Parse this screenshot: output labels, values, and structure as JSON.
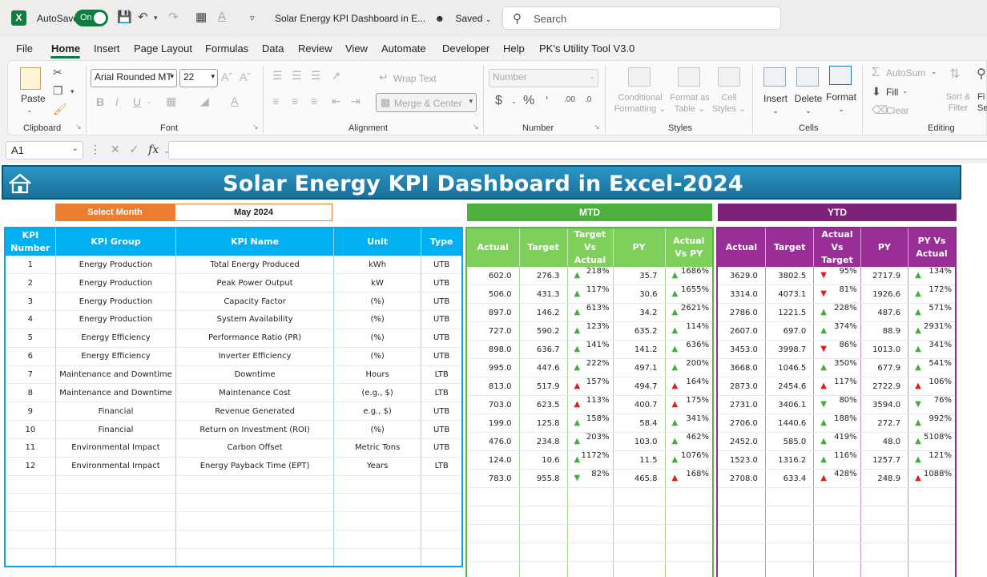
{
  "titlebar": {
    "app_icon": "X",
    "autosave_label": "AutoSave",
    "autosave_state": "On",
    "doc_title": "Solar Energy KPI Dashboard in E...",
    "saved_label": "Saved",
    "search_placeholder": "Search"
  },
  "menu": [
    "File",
    "Home",
    "Insert",
    "Page Layout",
    "Formulas",
    "Data",
    "Review",
    "View",
    "Automate",
    "Developer",
    "Help",
    "PK's Utility Tool V3.0"
  ],
  "ribbon": {
    "clipboard": {
      "label": "Clipboard",
      "paste": "Paste"
    },
    "font": {
      "label": "Font",
      "font_name": "Arial Rounded MT",
      "font_size": "22"
    },
    "alignment": {
      "label": "Alignment",
      "wrap_text": "Wrap Text",
      "merge_center": "Merge & Center"
    },
    "number": {
      "label": "Number",
      "format": "Number"
    },
    "styles": {
      "label": "Styles",
      "conditional_1": "Conditional",
      "conditional_2": "Formatting",
      "format_as_table_1": "Format as",
      "format_as_table_2": "Table",
      "cell_styles_1": "Cell",
      "cell_styles_2": "Styles"
    },
    "cells": {
      "label": "Cells",
      "insert": "Insert",
      "delete": "Delete",
      "format": "Format"
    },
    "editing": {
      "label": "Editing",
      "autosum": "AutoSum",
      "fill": "Fill",
      "clear": "Clear",
      "sort_filter_1": "Sort &",
      "sort_filter_2": "Filter",
      "find_1": "Fi",
      "find_2": "Se"
    }
  },
  "formula_bar": {
    "name_box": "A1",
    "fx": "fx"
  },
  "dashboard": {
    "title": "Solar Energy KPI Dashboard in Excel-2024",
    "select_month_label": "Select Month",
    "selected_month": "May 2024",
    "mtd_label": "MTD",
    "ytd_label": "YTD",
    "kpi_headers": [
      "KPI Number",
      "KPI Group",
      "KPI Name",
      "Unit",
      "Type"
    ],
    "mtd_headers": [
      "Actual",
      "Target",
      "Target Vs Actual",
      "PY",
      "Actual Vs PY"
    ],
    "ytd_headers": [
      "Actual",
      "Target",
      "Actual Vs Target",
      "PY",
      "PY Vs Actual"
    ],
    "rows": [
      {
        "num": "1",
        "group": "Energy Production",
        "name": "Total Energy Produced",
        "unit": "kWh",
        "type": "UTB",
        "mtd": {
          "actual": "602.0",
          "target": "276.3",
          "tva": "218%",
          "tva_dir": "up",
          "py": "35.7",
          "avp": "1686%",
          "avp_dir": "up"
        },
        "ytd": {
          "actual": "3629.0",
          "target": "3802.5",
          "avt": "95%",
          "avt_dir": "down",
          "py": "2717.9",
          "pva": "134%",
          "pva_dir": "up"
        }
      },
      {
        "num": "2",
        "group": "Energy Production",
        "name": "Peak Power Output",
        "unit": "kW",
        "type": "UTB",
        "mtd": {
          "actual": "506.0",
          "target": "431.3",
          "tva": "117%",
          "tva_dir": "up",
          "py": "30.6",
          "avp": "1655%",
          "avp_dir": "up"
        },
        "ytd": {
          "actual": "3314.0",
          "target": "4073.1",
          "avt": "81%",
          "avt_dir": "down",
          "py": "1926.6",
          "pva": "172%",
          "pva_dir": "up"
        }
      },
      {
        "num": "3",
        "group": "Energy Production",
        "name": "Capacity Factor",
        "unit": "(%)",
        "type": "UTB",
        "mtd": {
          "actual": "897.0",
          "target": "146.2",
          "tva": "613%",
          "tva_dir": "up",
          "py": "34.2",
          "avp": "2621%",
          "avp_dir": "up"
        },
        "ytd": {
          "actual": "2786.0",
          "target": "1221.5",
          "avt": "228%",
          "avt_dir": "up",
          "py": "487.6",
          "pva": "571%",
          "pva_dir": "up"
        }
      },
      {
        "num": "4",
        "group": "Energy Production",
        "name": "System Availability",
        "unit": "(%)",
        "type": "UTB",
        "mtd": {
          "actual": "727.0",
          "target": "590.2",
          "tva": "123%",
          "tva_dir": "up",
          "py": "635.2",
          "avp": "114%",
          "avp_dir": "up"
        },
        "ytd": {
          "actual": "2607.0",
          "target": "697.0",
          "avt": "374%",
          "avt_dir": "up",
          "py": "88.9",
          "pva": "2931%",
          "pva_dir": "up"
        }
      },
      {
        "num": "5",
        "group": "Energy Efficiency",
        "name": "Performance Ratio (PR)",
        "unit": "(%)",
        "type": "UTB",
        "mtd": {
          "actual": "898.0",
          "target": "636.7",
          "tva": "141%",
          "tva_dir": "up",
          "py": "141.2",
          "avp": "636%",
          "avp_dir": "up"
        },
        "ytd": {
          "actual": "3453.0",
          "target": "3998.7",
          "avt": "86%",
          "avt_dir": "down",
          "py": "1013.0",
          "pva": "341%",
          "pva_dir": "up"
        }
      },
      {
        "num": "6",
        "group": "Energy Efficiency",
        "name": "Inverter Efficiency",
        "unit": "(%)",
        "type": "UTB",
        "mtd": {
          "actual": "995.0",
          "target": "447.6",
          "tva": "222%",
          "tva_dir": "up",
          "py": "497.1",
          "avp": "200%",
          "avp_dir": "up"
        },
        "ytd": {
          "actual": "3668.0",
          "target": "1046.5",
          "avt": "350%",
          "avt_dir": "up",
          "py": "677.9",
          "pva": "541%",
          "pva_dir": "up"
        }
      },
      {
        "num": "7",
        "group": "Maintenance and Downtime",
        "name": "Downtime",
        "unit": "Hours",
        "type": "LTB",
        "mtd": {
          "actual": "813.0",
          "target": "517.9",
          "tva": "157%",
          "tva_dir": "bad",
          "py": "494.7",
          "avp": "164%",
          "avp_dir": "bad"
        },
        "ytd": {
          "actual": "2873.0",
          "target": "2454.6",
          "avt": "117%",
          "avt_dir": "bad",
          "py": "2722.9",
          "pva": "106%",
          "pva_dir": "bad"
        }
      },
      {
        "num": "8",
        "group": "Maintenance and Downtime",
        "name": "Maintenance Cost",
        "unit": "(e.g., $)",
        "type": "LTB",
        "mtd": {
          "actual": "703.0",
          "target": "623.5",
          "tva": "113%",
          "tva_dir": "bad",
          "py": "400.7",
          "avp": "175%",
          "avp_dir": "bad"
        },
        "ytd": {
          "actual": "2731.0",
          "target": "3406.1",
          "avt": "80%",
          "avt_dir": "good",
          "py": "3594.0",
          "pva": "76%",
          "pva_dir": "good"
        }
      },
      {
        "num": "9",
        "group": "Financial",
        "name": "Revenue Generated",
        "unit": "e.g., $)",
        "type": "UTB",
        "mtd": {
          "actual": "199.0",
          "target": "125.8",
          "tva": "158%",
          "tva_dir": "up",
          "py": "58.4",
          "avp": "341%",
          "avp_dir": "up"
        },
        "ytd": {
          "actual": "2706.0",
          "target": "1440.6",
          "avt": "188%",
          "avt_dir": "up",
          "py": "272.7",
          "pva": "992%",
          "pva_dir": "up"
        }
      },
      {
        "num": "10",
        "group": "Financial",
        "name": "Return on Investment (ROI)",
        "unit": "(%)",
        "type": "UTB",
        "mtd": {
          "actual": "476.0",
          "target": "234.8",
          "tva": "203%",
          "tva_dir": "up",
          "py": "103.0",
          "avp": "462%",
          "avp_dir": "up"
        },
        "ytd": {
          "actual": "2452.0",
          "target": "585.0",
          "avt": "419%",
          "avt_dir": "up",
          "py": "48.0",
          "pva": "5108%",
          "pva_dir": "up"
        }
      },
      {
        "num": "11",
        "group": "Environmental Impact",
        "name": "Carbon Offset",
        "unit": "Metric Tons",
        "type": "UTB",
        "mtd": {
          "actual": "124.0",
          "target": "10.6",
          "tva": "1172%",
          "tva_dir": "up",
          "py": "11.5",
          "avp": "1076%",
          "avp_dir": "up"
        },
        "ytd": {
          "actual": "1523.0",
          "target": "1316.2",
          "avt": "116%",
          "avt_dir": "up",
          "py": "1257.7",
          "pva": "121%",
          "pva_dir": "up"
        }
      },
      {
        "num": "12",
        "group": "Environmental Impact",
        "name": "Energy Payback Time (EPT)",
        "unit": "Years",
        "type": "LTB",
        "mtd": {
          "actual": "783.0",
          "target": "955.8",
          "tva": "82%",
          "tva_dir": "good",
          "py": "465.8",
          "avp": "168%",
          "avp_dir": "bad"
        },
        "ytd": {
          "actual": "2708.0",
          "target": "633.4",
          "avt": "428%",
          "avt_dir": "bad",
          "py": "248.9",
          "pva": "1088%",
          "pva_dir": "bad"
        }
      }
    ]
  },
  "colors": {
    "excel_green": "#107c41",
    "title_blue": "#1a7fae",
    "orange": "#ed7d31",
    "mtd_green": "#4daf3c",
    "ytd_purple": "#7c2278",
    "kpi_blue": "#00b0f0",
    "arrow_up": "#3fae3a",
    "arrow_down": "#e31b1b"
  }
}
